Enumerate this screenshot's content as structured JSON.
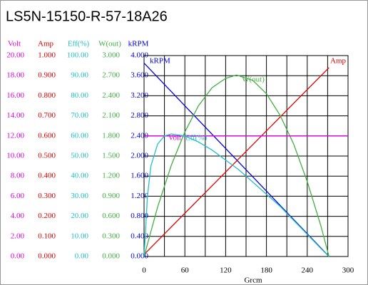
{
  "chart_data": {
    "type": "line",
    "title": "LS5N-15150-R-57-18A26",
    "x_label": "Grcm",
    "xlim": [
      0,
      300
    ],
    "xticks": [
      0,
      60,
      120,
      180,
      240,
      300
    ],
    "grid": true,
    "axes": [
      {
        "name": "Volt",
        "color": "#e000e0",
        "lim": [
          0,
          20
        ],
        "ticks": [
          {
            "value": 0,
            "label": "0.00"
          },
          {
            "value": 2,
            "label": "2.00"
          },
          {
            "value": 4,
            "label": "4.00"
          },
          {
            "value": 6,
            "label": "6.00"
          },
          {
            "value": 8,
            "label": "8.00"
          },
          {
            "value": 10,
            "label": "10.00"
          },
          {
            "value": 12,
            "label": "12.00"
          },
          {
            "value": 14,
            "label": "14.00"
          },
          {
            "value": 16,
            "label": "16.00"
          },
          {
            "value": 18,
            "label": "18.00"
          },
          {
            "value": 20,
            "label": "20.00"
          }
        ]
      },
      {
        "name": "Amp",
        "color": "#e00000",
        "lim": [
          0,
          1
        ],
        "ticks": [
          {
            "value": 0,
            "label": "0.000"
          },
          {
            "value": 0.1,
            "label": "0.100"
          },
          {
            "value": 0.2,
            "label": "0.200"
          },
          {
            "value": 0.3,
            "label": "0.300"
          },
          {
            "value": 0.4,
            "label": "0.400"
          },
          {
            "value": 0.5,
            "label": "0.500"
          },
          {
            "value": 0.6,
            "label": "0.600"
          },
          {
            "value": 0.7,
            "label": "0.700"
          },
          {
            "value": 0.8,
            "label": "0.800"
          },
          {
            "value": 0.9,
            "label": "0.900"
          },
          {
            "value": 1,
            "label": "1.000"
          }
        ]
      },
      {
        "name": "Eff(%)",
        "color": "#20c0c8",
        "lim": [
          0,
          100
        ],
        "ticks": [
          {
            "value": 0,
            "label": "0.00"
          },
          {
            "value": 10,
            "label": "10.00"
          },
          {
            "value": 20,
            "label": "20.00"
          },
          {
            "value": 30,
            "label": "30.00"
          },
          {
            "value": 40,
            "label": "40.00"
          },
          {
            "value": 50,
            "label": "50.00"
          },
          {
            "value": 60,
            "label": "60.00"
          },
          {
            "value": 70,
            "label": "70.00"
          },
          {
            "value": 80,
            "label": "80.00"
          },
          {
            "value": 90,
            "label": "90.00"
          },
          {
            "value": 100,
            "label": "100.00"
          }
        ]
      },
      {
        "name": "W(out)",
        "color": "#40b040",
        "lim": [
          0,
          3
        ],
        "ticks": [
          {
            "value": 0,
            "label": "0.000"
          },
          {
            "value": 0.3,
            "label": "0.300"
          },
          {
            "value": 0.6,
            "label": "0.600"
          },
          {
            "value": 0.9,
            "label": "0.900"
          },
          {
            "value": 1.2,
            "label": "1.200"
          },
          {
            "value": 1.5,
            "label": "1.500"
          },
          {
            "value": 1.8,
            "label": "1.800"
          },
          {
            "value": 2.1,
            "label": "2.100"
          },
          {
            "value": 2.4,
            "label": "2.400"
          },
          {
            "value": 2.7,
            "label": "2.700"
          },
          {
            "value": 3,
            "label": "3.000"
          }
        ]
      },
      {
        "name": "kRPM",
        "color": "#0000e0",
        "lim": [
          0,
          4
        ],
        "ticks": [
          {
            "value": 0,
            "label": "0.000"
          },
          {
            "value": 0.4,
            "label": "0.400"
          },
          {
            "value": 0.8,
            "label": "0.800"
          },
          {
            "value": 1.2,
            "label": "1.200"
          },
          {
            "value": 1.6,
            "label": "1.600"
          },
          {
            "value": 2,
            "label": "2.000"
          },
          {
            "value": 2.4,
            "label": "2.400"
          },
          {
            "value": 2.8,
            "label": "2.800"
          },
          {
            "value": 3.2,
            "label": "3.200"
          },
          {
            "value": 3.6,
            "label": "3.600"
          },
          {
            "value": 4,
            "label": "4.000"
          }
        ]
      }
    ],
    "series": [
      {
        "name": "kRPM",
        "axis": 4,
        "color": "#0000e0",
        "x": [
          0,
          272
        ],
        "values": [
          3.85,
          0
        ]
      },
      {
        "name": "Amp",
        "axis": 1,
        "color": "#e00000",
        "x": [
          0,
          272
        ],
        "values": [
          0.01,
          0.94
        ]
      },
      {
        "name": "W(out)",
        "axis": 3,
        "color": "#40b040",
        "x": [
          0,
          20,
          40,
          60,
          80,
          100,
          120,
          136,
          160,
          180,
          200,
          220,
          240,
          260,
          272
        ],
        "values": [
          0,
          0.74,
          1.36,
          1.86,
          2.25,
          2.52,
          2.66,
          2.71,
          2.63,
          2.43,
          2.11,
          1.68,
          1.12,
          0.46,
          0
        ]
      },
      {
        "name": "Volt",
        "axis": 0,
        "color": "#e000e0",
        "x": [
          0,
          300
        ],
        "values": [
          12,
          12
        ]
      },
      {
        "name": "Eff(%)",
        "axis": 2,
        "color": "#20c0c8",
        "x": [
          0,
          5,
          10,
          20,
          30,
          40,
          60,
          80,
          100,
          120,
          140,
          160,
          180,
          200,
          220,
          240,
          260,
          272
        ],
        "values": [
          0,
          30,
          45,
          56,
          60,
          61,
          60,
          57,
          53,
          48,
          43,
          37,
          31,
          25,
          18,
          11,
          4,
          0
        ]
      }
    ]
  }
}
